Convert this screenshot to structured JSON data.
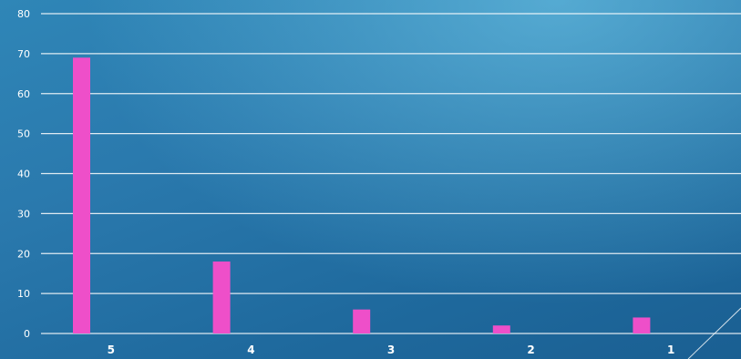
{
  "chart_data": {
    "type": "bar",
    "title": "",
    "categories": [
      "5",
      "4",
      "3",
      "2",
      "1"
    ],
    "values": [
      69,
      18,
      6,
      2,
      4
    ],
    "ylim": [
      0,
      80
    ],
    "yticks": [
      0,
      10,
      20,
      30,
      40,
      50,
      60,
      70,
      80
    ],
    "xlabel": "",
    "ylabel": "",
    "grid": true,
    "legend": "none",
    "bar_color": "#ee4fc9"
  }
}
